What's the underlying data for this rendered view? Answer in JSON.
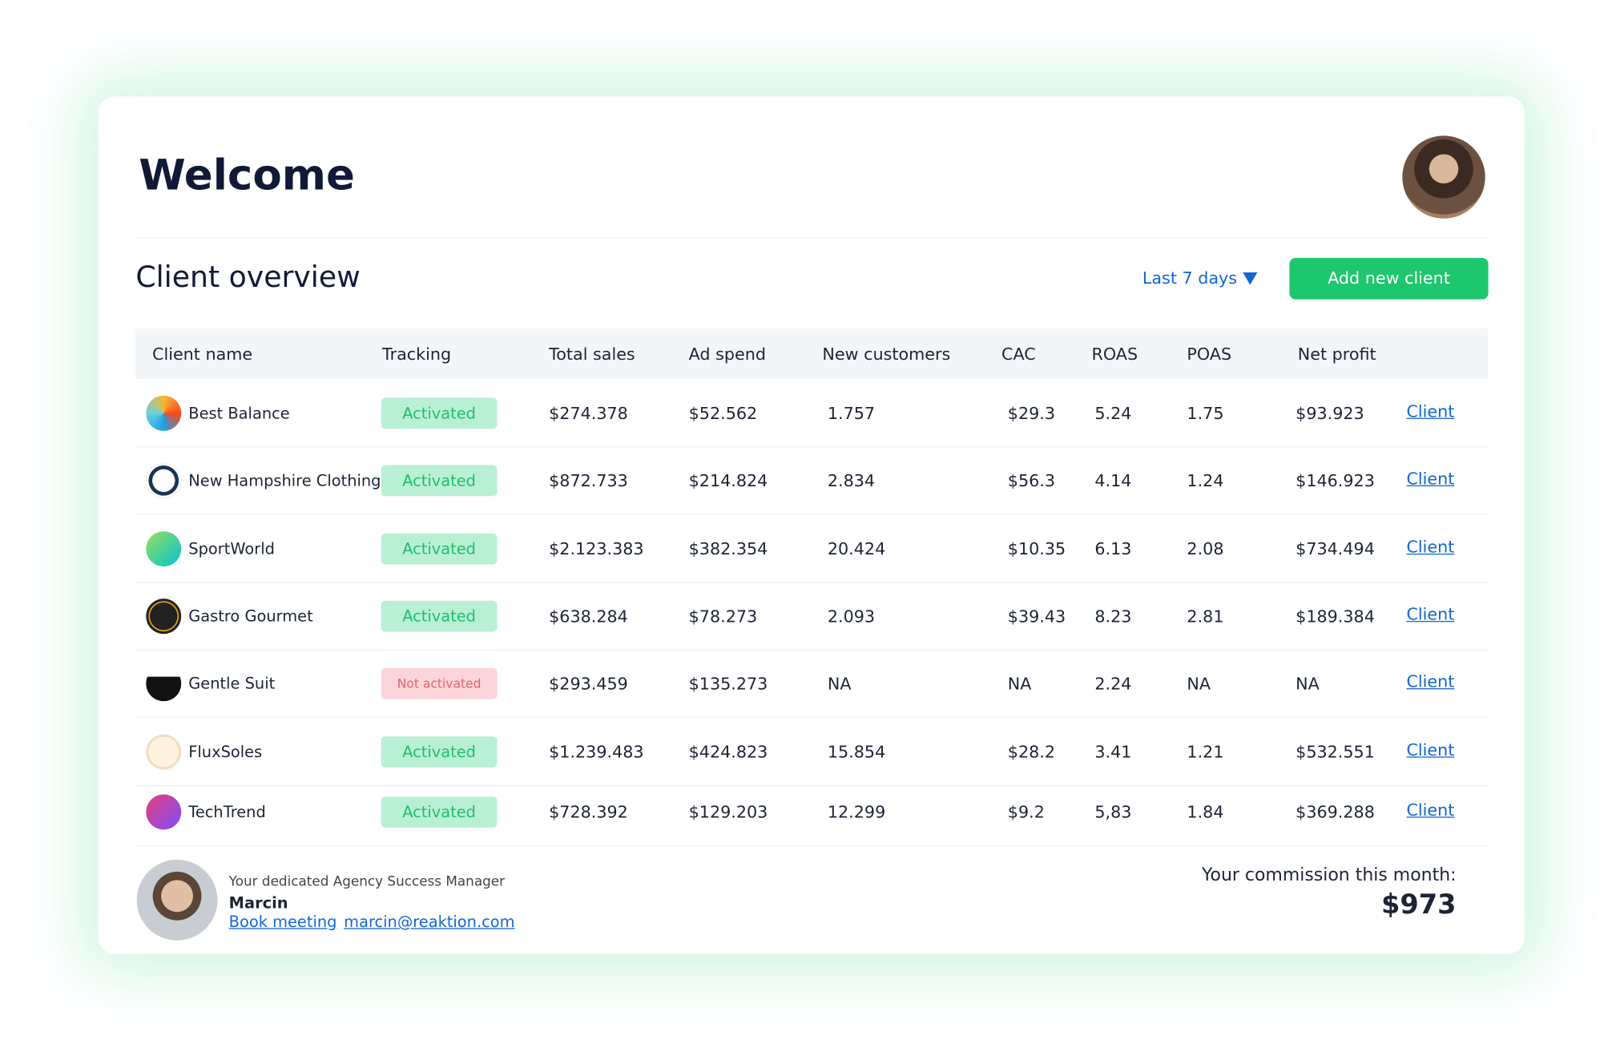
{
  "header": {
    "title": "Welcome"
  },
  "overview": {
    "title": "Client overview",
    "filter": "Last 7 days",
    "button": "Add new client"
  },
  "table": {
    "columns": [
      "Client name",
      "Tracking",
      "Total sales",
      "Ad spend",
      "New customers",
      "CAC",
      "ROAS",
      "POAS",
      "Net profit"
    ],
    "rows": [
      [
        "Best Balance",
        "Activated",
        "$274.378",
        "$52.562",
        "1.757",
        "$29.3",
        "5.24",
        "1.75",
        "$93.923",
        "Client"
      ],
      [
        "New Hampshire Clothing",
        "Activated",
        "$872.733",
        "$214.824",
        "2.834",
        "$56.3",
        "4.14",
        "1.24",
        "$146.923",
        "Client"
      ],
      [
        "SportWorld",
        "Activated",
        "$2.123.383",
        "$382.354",
        "20.424",
        "$10.35",
        "6.13",
        "2.08",
        "$734.494",
        "Client"
      ],
      [
        "Gastro Gourmet",
        "Activated",
        "$638.284",
        "$78.273",
        "2.093",
        "$39.43",
        "8.23",
        "2.81",
        "$189.384",
        "Client"
      ],
      [
        "Gentle Suit",
        "Not activated",
        "$293.459",
        "$135.273",
        "NA",
        "NA",
        "2.24",
        "NA",
        "NA",
        "Client"
      ],
      [
        "FluxSoles",
        "Activated",
        "$1.239.483",
        "$424.823",
        "15.854",
        "$28.2",
        "3.41",
        "1.21",
        "$532.551",
        "Client"
      ],
      [
        "TechTrend",
        "Activated",
        "$728.392",
        "$129.203",
        "12.299",
        "$9.2",
        "5,83",
        "1.84",
        "$369.288",
        "Client"
      ]
    ]
  },
  "footer": {
    "caption": "Your dedicated Agency Success Manager",
    "name": "Marcin",
    "meeting": "Book meeting",
    "email": "marcin@reaktion.com",
    "commission_label": "Your commission this month:",
    "commission_value": "$973"
  }
}
